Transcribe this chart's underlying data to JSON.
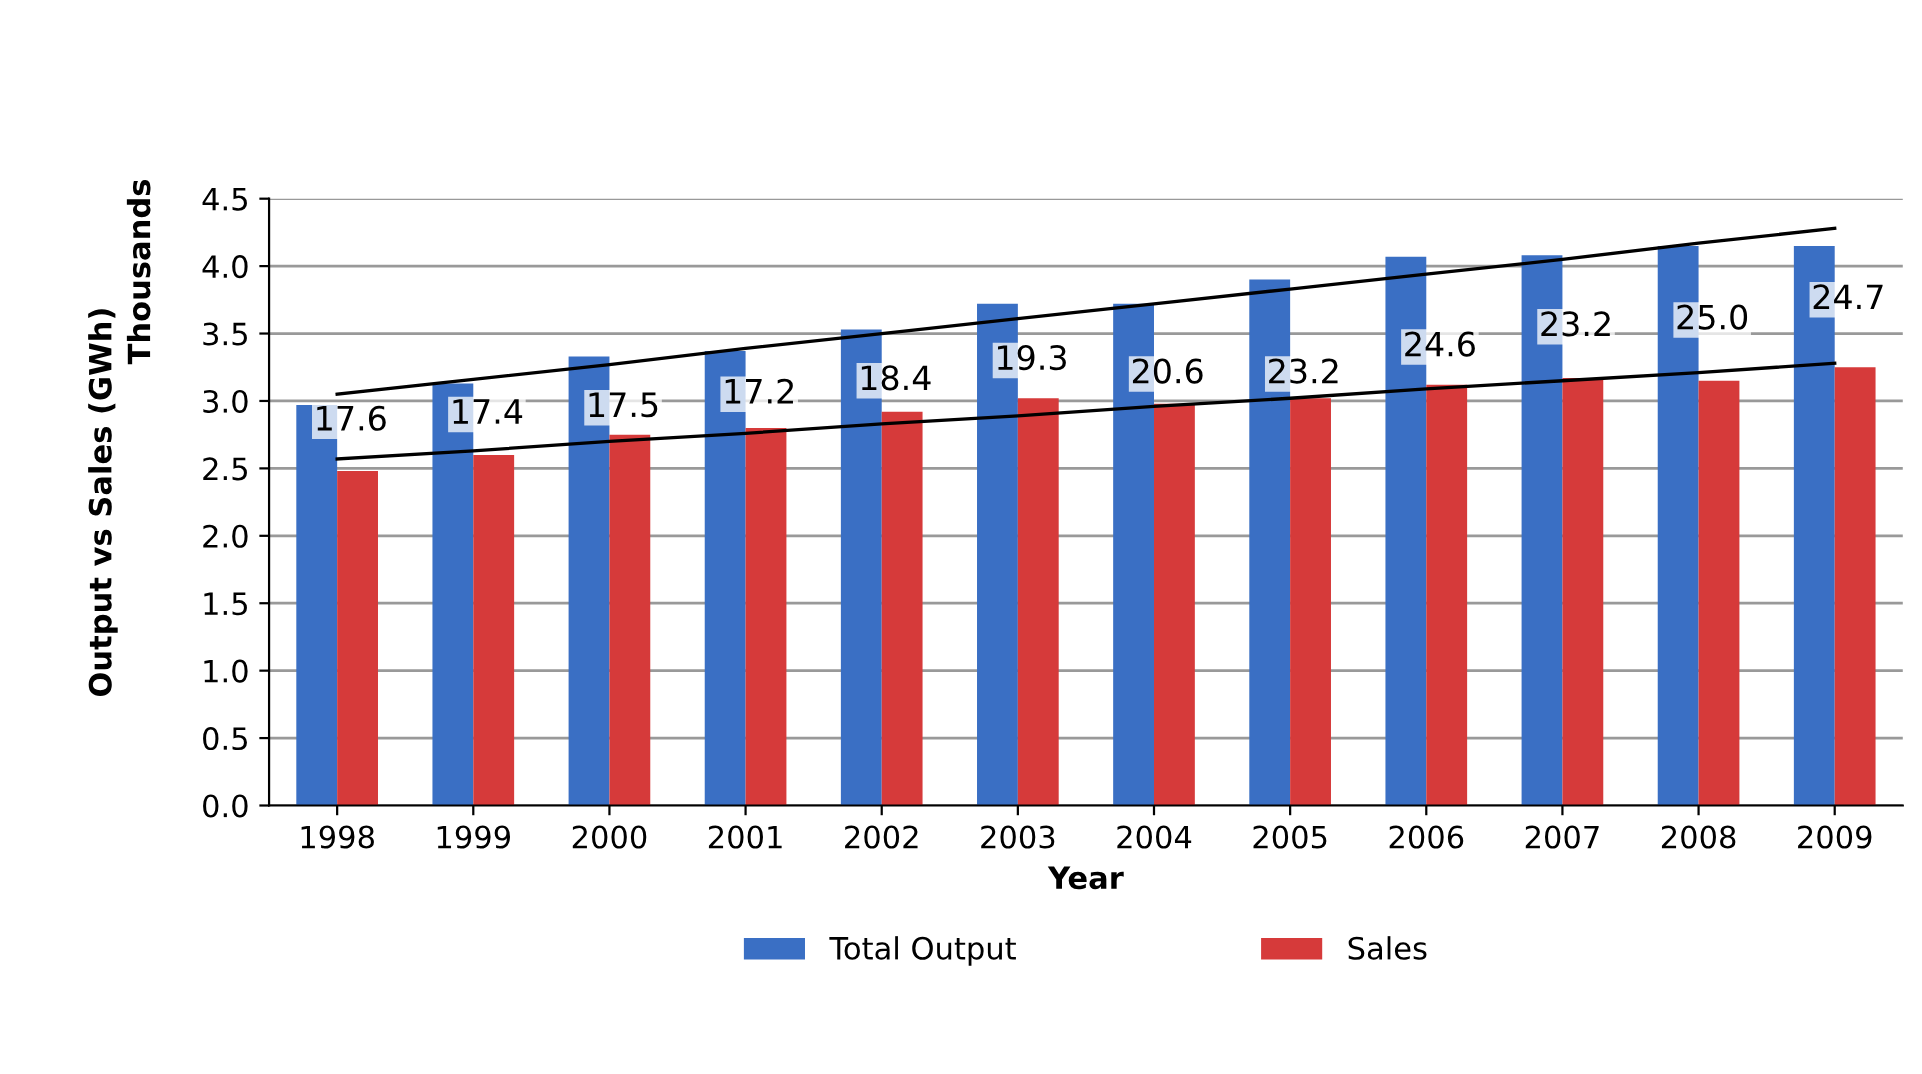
{
  "chart_data": {
    "type": "bar",
    "categories": [
      "1998",
      "1999",
      "2000",
      "2001",
      "2002",
      "2003",
      "2004",
      "2005",
      "2006",
      "2007",
      "2008",
      "2009"
    ],
    "series": [
      {
        "name": "Total Output",
        "color": "#3a6fc4",
        "values": [
          2.97,
          3.13,
          3.33,
          3.37,
          3.53,
          3.72,
          3.72,
          3.9,
          4.07,
          4.08,
          4.15,
          4.15
        ]
      },
      {
        "name": "Sales",
        "color": "#d63a3a",
        "values": [
          2.48,
          2.6,
          2.75,
          2.8,
          2.92,
          3.02,
          2.98,
          3.02,
          3.12,
          3.17,
          3.15,
          3.25
        ]
      },
      {
        "type": "line",
        "color": "#000000",
        "values": [
          3.05,
          3.16,
          3.27,
          3.39,
          3.5,
          3.61,
          3.72,
          3.83,
          3.94,
          4.05,
          4.17,
          4.28
        ]
      },
      {
        "type": "line",
        "color": "#000000",
        "values": [
          2.57,
          2.63,
          2.7,
          2.76,
          2.83,
          2.89,
          2.96,
          3.02,
          3.09,
          3.15,
          3.21,
          3.28
        ]
      }
    ],
    "xlabel": "Year",
    "ylabel": "Output vs Sales (GWh)",
    "annotations": [
      "Thousands",
      {
        "text": "17.6",
        "x": "1998",
        "y": 2.85
      },
      {
        "text": "17.4",
        "x": "1999",
        "y": 2.9
      },
      {
        "text": "17.5",
        "x": "2000",
        "y": 2.95
      },
      {
        "text": "17.2",
        "x": "2001",
        "y": 3.05
      },
      {
        "text": "18.4",
        "x": "2002",
        "y": 3.15
      },
      {
        "text": "19.3",
        "x": "2003",
        "y": 3.3
      },
      {
        "text": "20.6",
        "x": "2004",
        "y": 3.2
      },
      {
        "text": "23.2",
        "x": "2005",
        "y": 3.2
      },
      {
        "text": "24.6",
        "x": "2006",
        "y": 3.4
      },
      {
        "text": "23.2",
        "x": "2007",
        "y": 3.55
      },
      {
        "text": "25.0",
        "x": "2008",
        "y": 3.6
      },
      {
        "text": "24.7",
        "x": "2009",
        "y": 3.75
      }
    ],
    "ylim": [
      0,
      4.5
    ],
    "yticks": [
      {
        "value": 0,
        "label": "0.0"
      },
      0.5,
      {
        "value": 1,
        "label": "1.0"
      },
      1.5,
      {
        "value": 2,
        "label": "2.0"
      },
      2.5,
      {
        "value": 3,
        "label": "3.0"
      },
      3.5,
      {
        "value": 4,
        "label": "4.0"
      },
      4.5
    ],
    "grid": "y",
    "legend": "bottom"
  }
}
